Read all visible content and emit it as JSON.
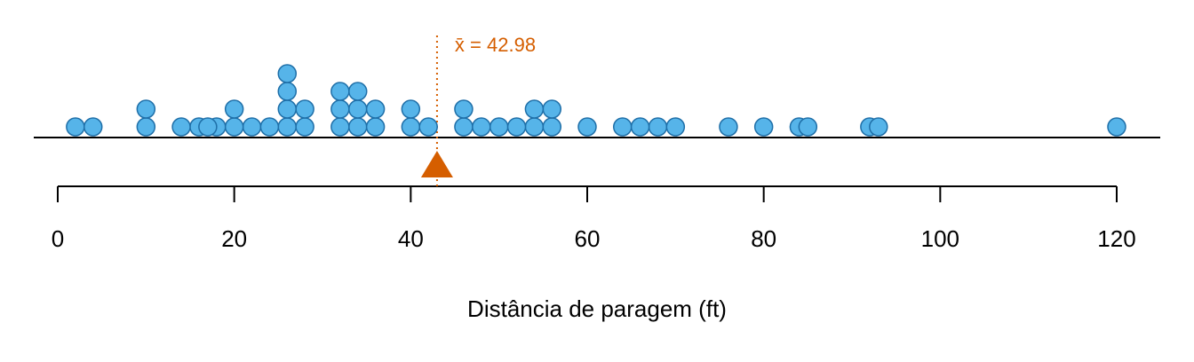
{
  "chart_data": {
    "type": "dotplot",
    "x_label": "Distância de paragem (ft)",
    "values": [
      2,
      10,
      4,
      22,
      16,
      10,
      18,
      26,
      34,
      17,
      28,
      14,
      20,
      24,
      28,
      26,
      34,
      34,
      46,
      26,
      36,
      60,
      80,
      20,
      26,
      54,
      32,
      40,
      32,
      40,
      50,
      42,
      56,
      76,
      84,
      36,
      46,
      68,
      32,
      48,
      52,
      56,
      64,
      66,
      54,
      70,
      92,
      93,
      120,
      85
    ],
    "color": "#56b4e9",
    "xlim": [
      0,
      120
    ],
    "xticks": [
      0,
      20,
      40,
      60,
      80,
      100,
      120
    ],
    "mean": {
      "value": 42.98,
      "label": "x̄ = 42.98"
    },
    "mean_color": "#d55e00"
  }
}
